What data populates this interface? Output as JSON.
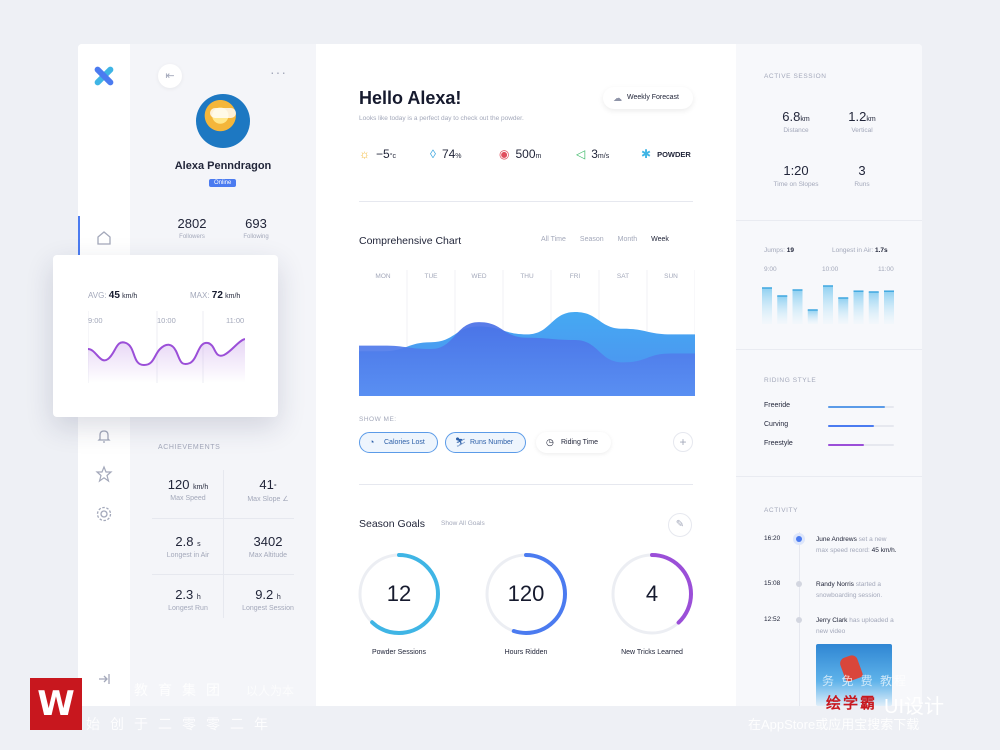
{
  "colors": {
    "accent": "#4b7bf0",
    "cyan": "#3fb5e5",
    "purple": "#9b4fd8",
    "pink_blue": "#5b8fe8"
  },
  "nav": {
    "icons": [
      "logo-icon",
      "home-icon",
      "bell-icon",
      "star-icon",
      "gear-icon",
      "logout-icon"
    ]
  },
  "profile": {
    "name": "Alexa Penndragon",
    "status": "Online",
    "followers_value": "2802",
    "followers_label": "Followers",
    "following_value": "693",
    "following_label": "Following"
  },
  "achievements": {
    "title": "ACHIEVEMENTS",
    "items": [
      {
        "value": "120",
        "unit": "km/h",
        "label": "Max Speed"
      },
      {
        "value": "41",
        "unit": "°",
        "label": "Max Slope ∠"
      },
      {
        "value": "2.8",
        "unit": "s",
        "label": "Longest in Air"
      },
      {
        "value": "3402",
        "unit": "",
        "label": "Max Altitude"
      },
      {
        "value": "2.3",
        "unit": "h",
        "label": "Longest Run"
      },
      {
        "value": "9.2",
        "unit": "h",
        "label": "Longest Session"
      }
    ]
  },
  "speed_card": {
    "avg_label": "AVG:",
    "avg_value": "45",
    "avg_unit": "km/h",
    "max_label": "MAX:",
    "max_value": "72",
    "max_unit": "km/h",
    "ticks": [
      "9:00",
      "10:00",
      "11:00"
    ]
  },
  "header": {
    "greeting": "Hello Alexa!",
    "subtitle": "Looks like today is a perfect day to check out the powder.",
    "forecast_button": "Weekly Forecast"
  },
  "weather": [
    {
      "icon": "sun-icon",
      "value": "−5",
      "unit": "°c"
    },
    {
      "icon": "drop-icon",
      "value": "74",
      "unit": "%"
    },
    {
      "icon": "eye-icon",
      "value": "500",
      "unit": "m"
    },
    {
      "icon": "wind-icon",
      "value": "3",
      "unit": "m/s"
    },
    {
      "icon": "snow-icon",
      "value": "POWDER",
      "unit": ""
    }
  ],
  "chart": {
    "title": "Comprehensive Chart",
    "tabs": [
      "All Time",
      "Season",
      "Month",
      "Week"
    ],
    "active_tab": "Week",
    "show_me": "SHOW ME:",
    "chips": [
      "Calories Lost",
      "Runs Number",
      "Riding Time"
    ]
  },
  "chart_data": {
    "type": "area",
    "categories": [
      "MON",
      "TUE",
      "WED",
      "THU",
      "FRI",
      "SAT",
      "SUN"
    ],
    "series": [
      {
        "values": [
          40,
          48,
          62,
          55,
          75,
          60,
          55
        ]
      },
      {
        "values": [
          45,
          42,
          66,
          52,
          50,
          30,
          38
        ]
      }
    ],
    "ylim": [
      0,
      100
    ],
    "grid": true
  },
  "goals": {
    "title": "Season Goals",
    "link": "Show All Goals",
    "items": [
      {
        "value": "12",
        "label": "Powder Sessions",
        "progress": 0.62,
        "color": "#3fb5e5"
      },
      {
        "value": "120",
        "label": "Hours Ridden",
        "progress": 0.55,
        "color": "#4b7bf0"
      },
      {
        "value": "4",
        "label": "New Tricks Learned",
        "progress": 0.38,
        "color": "#9b4fd8"
      }
    ]
  },
  "active_session": {
    "title": "ACTIVE SESSION",
    "stats": [
      {
        "value": "6.8",
        "unit": "km",
        "label": "Distance"
      },
      {
        "value": "1.2",
        "unit": "km",
        "label": "Vertical"
      },
      {
        "value": "1:20",
        "unit": "",
        "label": "Time on Slopes"
      },
      {
        "value": "3",
        "unit": "",
        "label": "Runs"
      }
    ]
  },
  "jumps": {
    "jumps_label": "Jumps:",
    "jumps_value": "19",
    "air_label": "Longest in Air:",
    "air_value": "1.7s",
    "ticks": [
      "9:00",
      "10:00",
      "11:00"
    ],
    "bars": [
      0.9,
      0.7,
      0.85,
      0.35,
      0.95,
      0.65,
      0.82,
      0.8,
      0.82
    ]
  },
  "riding_style": {
    "title": "RIDING STYLE",
    "items": [
      {
        "label": "Freeride",
        "value": 0.86,
        "color": "#5b9be8"
      },
      {
        "label": "Curving",
        "value": 0.7,
        "color": "#4b7bf0"
      },
      {
        "label": "Freestyle",
        "value": 0.55,
        "color": "#9b4fd8"
      }
    ]
  },
  "activity": {
    "title": "ACTIVITY",
    "items": [
      {
        "time": "16:20",
        "name": "June Andrews",
        "text": "set a new max speed record:",
        "extra": "45 km/h."
      },
      {
        "time": "15:08",
        "name": "Randy Norris",
        "text": "started a snowboarding session.",
        "extra": ""
      },
      {
        "time": "12:52",
        "name": "Jerry Clark",
        "text": "has uploaded a new video",
        "extra": ""
      }
    ]
  },
  "watermark": {
    "logo": "W",
    "line1": "教育集团",
    "line1_small": "以人为本",
    "line2": "始创于二零零二年",
    "right1": "务 免 费 教程",
    "brand": "绘学霸",
    "ui": "UI设计",
    "bottom": "在AppStore或应用宝搜索下载"
  }
}
